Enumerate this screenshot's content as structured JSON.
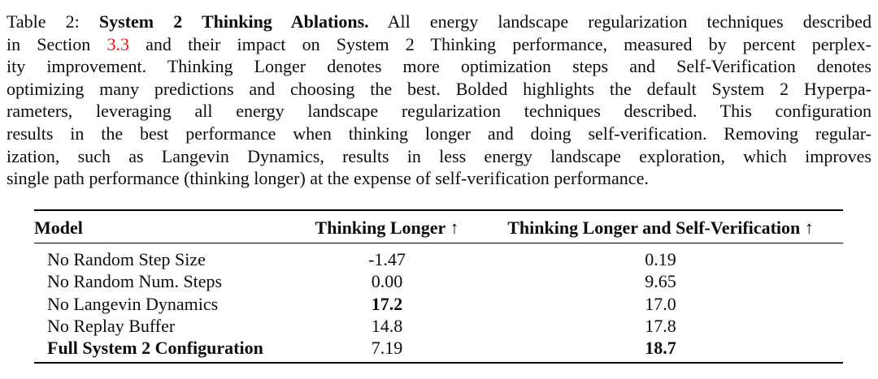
{
  "colors": {
    "background": "#ffffff",
    "text": "#0d0d0d",
    "link_red": "#ee1509",
    "rule": "#000000"
  },
  "caption": {
    "lines": [
      {
        "justify": true,
        "segments": [
          {
            "t": "Table 2: "
          },
          {
            "t": "System 2 Thinking Ablations.",
            "b": true
          },
          {
            "t": " All energy landscape regularization techniques described"
          }
        ]
      },
      {
        "justify": true,
        "segments": [
          {
            "t": "in Section "
          },
          {
            "t": "3.3",
            "link": true
          },
          {
            "t": " and their impact on System 2 Thinking performance, measured by percent perplex-"
          }
        ]
      },
      {
        "justify": true,
        "segments": [
          {
            "t": "ity improvement. Thinking Longer denotes more optimization steps and Self-Verification denotes"
          }
        ]
      },
      {
        "justify": true,
        "segments": [
          {
            "t": "optimizing many predictions and choosing the best. Bolded highlights the default System 2 Hyperpa-"
          }
        ]
      },
      {
        "justify": true,
        "segments": [
          {
            "t": "rameters, leveraging all energy landscape regularization techniques described. This configuration"
          }
        ]
      },
      {
        "justify": true,
        "segments": [
          {
            "t": "results in the best performance when thinking longer and doing self-verification. Removing regular-"
          }
        ]
      },
      {
        "justify": true,
        "segments": [
          {
            "t": "ization, such as Langevin Dynamics, results in less energy landscape exploration, which improves"
          }
        ]
      },
      {
        "justify": false,
        "segments": [
          {
            "t": "single path performance (thinking longer) at the expense of self-verification performance."
          }
        ]
      }
    ]
  },
  "table": {
    "columns": [
      {
        "label": "Model",
        "align": "left",
        "arrow": ""
      },
      {
        "label": "Thinking Longer",
        "align": "center",
        "arrow": "↑"
      },
      {
        "label": "Thinking Longer and Self-Verification",
        "align": "center",
        "arrow": "↑"
      }
    ],
    "rows": [
      {
        "cells": [
          {
            "t": "No Random Step Size"
          },
          {
            "t": "-1.47"
          },
          {
            "t": "0.19"
          }
        ]
      },
      {
        "cells": [
          {
            "t": "No Random Num. Steps"
          },
          {
            "t": "0.00"
          },
          {
            "t": "9.65"
          }
        ]
      },
      {
        "cells": [
          {
            "t": "No Langevin Dynamics"
          },
          {
            "t": "17.2",
            "b": true
          },
          {
            "t": "17.0"
          }
        ]
      },
      {
        "cells": [
          {
            "t": "No Replay Buffer"
          },
          {
            "t": "14.8"
          },
          {
            "t": "17.8"
          }
        ]
      },
      {
        "cells": [
          {
            "t": "Full System 2 Configuration",
            "b": true
          },
          {
            "t": "7.19"
          },
          {
            "t": "18.7",
            "b": true
          }
        ]
      }
    ]
  }
}
